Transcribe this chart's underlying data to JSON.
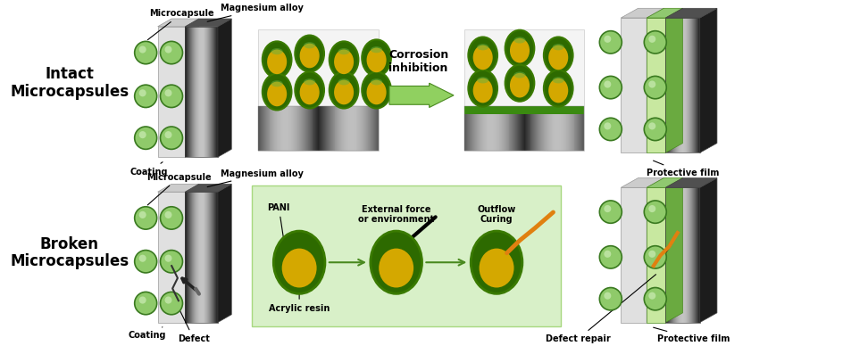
{
  "bg_color": "#ffffff",
  "green_dark": "#2d6a00",
  "green_ring": "#3a7a00",
  "green_mid": "#5aaa2a",
  "green_light": "#8fca6a",
  "green_pale": "#c5e8a0",
  "green_coating": "#5aaa30",
  "green_film": "#6ab840",
  "green_box": "#d8f0c8",
  "gold": "#d4a800",
  "gold_light": "#e8c840",
  "sphere_green": "#8fca6a",
  "sphere_dark": "#3a7a20",
  "gray_light": "#e0e0e0",
  "gray_mid": "#b0b0b0",
  "gray_dark": "#606060",
  "metal_dark": "#181818",
  "black": "#000000",
  "white": "#ffffff",
  "label_intact_1": "Intact",
  "label_intact_2": "Microcapsules",
  "label_broken_1": "Broken",
  "label_broken_2": "Microcapsules",
  "label_microcapsule": "Microcapsule",
  "label_magnesium": "Magnesium alloy",
  "label_coating": "Coating",
  "label_corrosion": "Corrosion\ninhibition",
  "label_protective": "Protective film",
  "label_pani": "PANI",
  "label_acrylic": "Acrylic resin",
  "label_external": "External force\nor environment",
  "label_outflow": "Outflow\nCuring",
  "label_defect": "Defect",
  "label_defect_repair": "Defect repair"
}
